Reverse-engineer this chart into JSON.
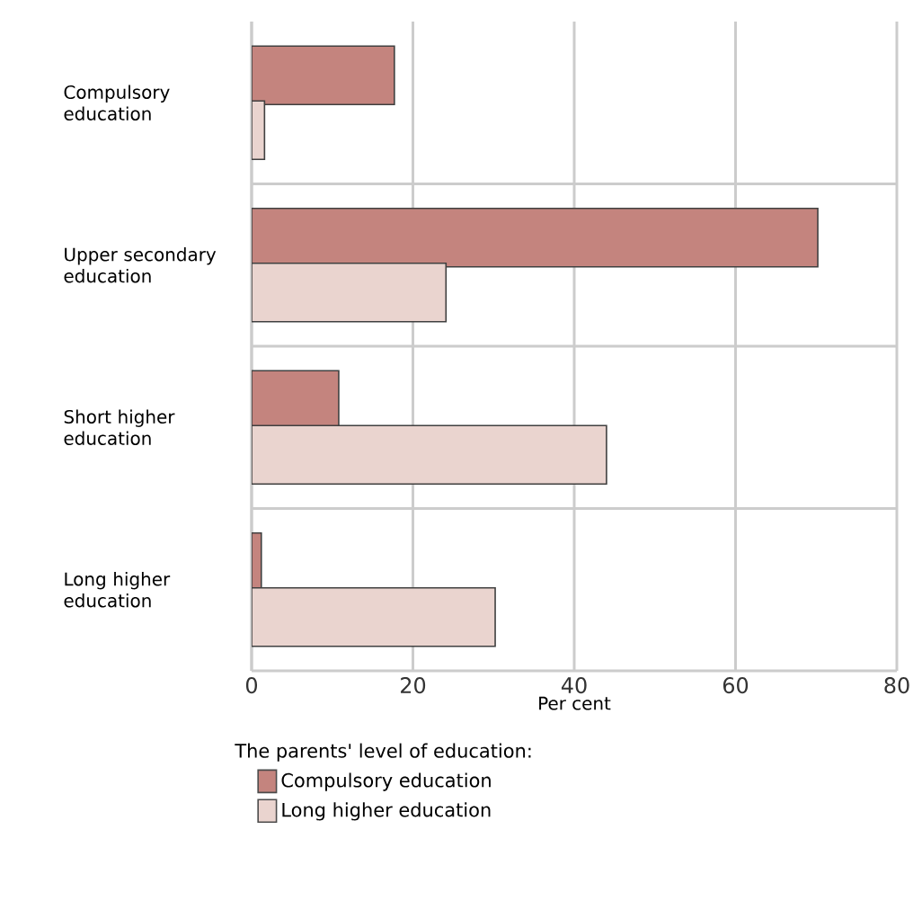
{
  "chart_data": {
    "type": "bar",
    "orientation": "horizontal",
    "categories": [
      "Compulsory education",
      "Upper secondary education",
      "Short higher education",
      "Long higher education"
    ],
    "series": [
      {
        "name": "Compulsory education",
        "color": "#c4847e",
        "values": [
          17.7,
          70.2,
          10.8,
          1.2
        ]
      },
      {
        "name": "Long higher education",
        "color": "#ead4cf",
        "values": [
          1.6,
          24.1,
          44.0,
          30.2
        ]
      }
    ],
    "xlabel": "Per cent",
    "legend_title": "The parents' level of education:",
    "xlim": [
      0,
      80
    ],
    "xticks": [
      0,
      20,
      40,
      60,
      80
    ],
    "grid": true,
    "legend": "bottom"
  }
}
